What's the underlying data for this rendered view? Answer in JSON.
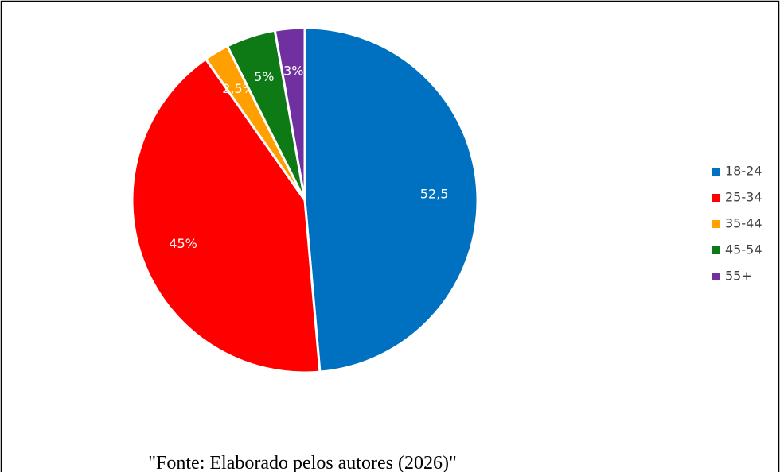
{
  "chart_data": {
    "type": "pie",
    "categories": [
      "18-24",
      "25-34",
      "35-44",
      "45-54",
      "55+"
    ],
    "values": [
      52.5,
      45,
      2.5,
      5,
      3
    ],
    "value_labels": [
      "52,5",
      "45%",
      "2,5%",
      "5%",
      "3%"
    ],
    "colors": [
      "#0070c0",
      "#ff0000",
      "#ffa000",
      "#0e7a16",
      "#7030a0"
    ],
    "legend": "right",
    "caption": "\"Fonte: Elaborado pelos autores (2026)\""
  }
}
